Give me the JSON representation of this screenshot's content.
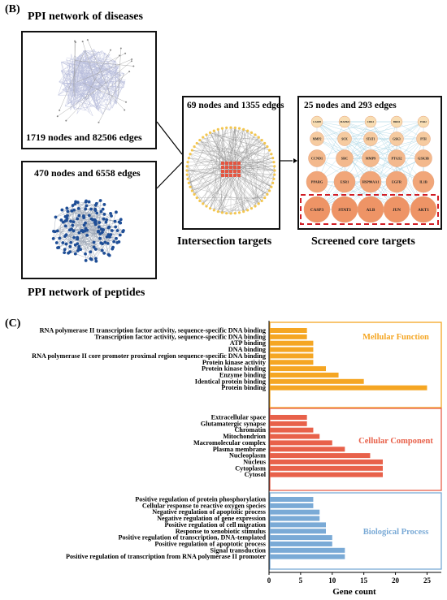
{
  "panel_b": {
    "label": "(B)",
    "disease_title": "PPI network of diseases",
    "disease_caption": "1719 nodes and 82506 edges",
    "peptide_caption": "470 nodes and 6558 edges",
    "peptide_title": "PPI network of peptides",
    "intersection_caption": "69 nodes and 1355 edges",
    "intersection_title": "Intersection targets",
    "core_caption": "25 nodes and 293 edges",
    "core_title": "Screened core targets",
    "core_rows": [
      [
        "CASP8",
        "MAPK8",
        "CDK1",
        "BRD4",
        "ESR2"
      ],
      [
        "MMP2",
        "SOX",
        "STAT1",
        "GSK3",
        "PTH"
      ],
      [
        "CCND1",
        "SRC",
        "MMP9",
        "PTGS2",
        "GSK3B"
      ],
      [
        "PPARG",
        "ESR1",
        "HSP90AA1",
        "EGFR",
        "IL1B"
      ],
      [
        "CASP3",
        "STAT3",
        "ALB",
        "JUN",
        "AKT1"
      ]
    ],
    "colors": {
      "disease_network": "#b9bedc",
      "peptide_network": "#1f4e96",
      "core_node_dark": "#ee9466",
      "core_node_light": "#f8ddb3",
      "highlight_dash": "#d11d25"
    }
  },
  "panel_c_label": "(C)",
  "chart_data": {
    "type": "bar",
    "orientation": "horizontal",
    "xlabel": "Gene count",
    "xlim": [
      0,
      27
    ],
    "xticks": [
      0,
      5,
      10,
      15,
      20,
      25
    ],
    "groups": [
      {
        "name": "Mellular Function",
        "color": "#f5a623",
        "categories": [
          "RNA polymerase II transcription factor activity, sequence-specific DNA binding",
          "Transcription factor activity, sequence-specific DNA binding",
          "ATP binding",
          "DNA binding",
          "RNA polymerase II core promoter proximal region sequence-specific DNA binding",
          "Protein kinase activity",
          "Protein kinase binding",
          "Enzyme binding",
          "Identical protein binding",
          "Protein binding"
        ],
        "values": [
          6,
          6,
          7,
          7,
          7,
          7,
          9,
          11,
          15,
          25
        ]
      },
      {
        "name": "Cellular Component",
        "color": "#e8614a",
        "categories": [
          "Extracellular space",
          "Glutamatergic synapse",
          "Chromatin",
          "Mitochondrion",
          "Macromolecular complex",
          "Plasma membrane",
          "Nucleoplasm",
          "Nucleus",
          "Cytoplasm",
          "Cytosol"
        ],
        "values": [
          6,
          6,
          7,
          8,
          10,
          12,
          16,
          18,
          18,
          18
        ]
      },
      {
        "name": "Biological Process",
        "color": "#7aaad6",
        "categories": [
          "Positive regulation of protein phosphorylation",
          "Cellular response to reactive oxygen species",
          "Negative regulation of apoptotic process",
          "Negative regulation of gene expression",
          "Positive regulation of cell migration",
          "Response to xenobiotic stimulus",
          "Positive regulation of transcription, DNA-templated",
          "Positive regulation of apoptotic process",
          "Signal transduction",
          "Positive regulation of transcription from RNA polymerase II promoter"
        ],
        "values": [
          7,
          7,
          8,
          8,
          9,
          9,
          10,
          10,
          12,
          12
        ]
      }
    ]
  }
}
